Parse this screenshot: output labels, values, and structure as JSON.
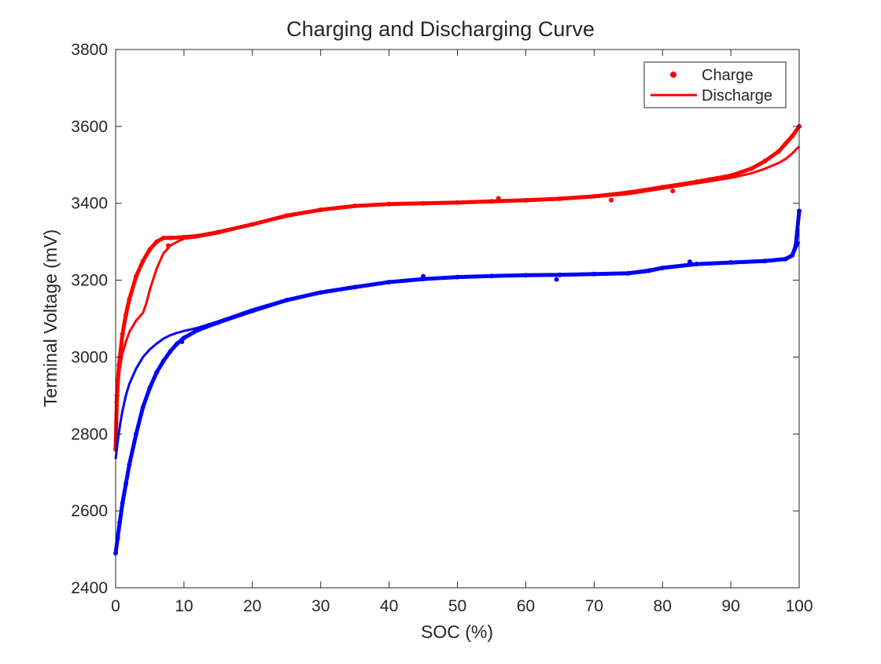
{
  "chart_data": {
    "type": "scatter",
    "title": "Charging and Discharging Curve",
    "xlabel": "SOC (%)",
    "ylabel": "Terminal Voltage (mV)",
    "xlim": [
      0,
      100
    ],
    "ylim": [
      2400,
      3800
    ],
    "xticks": [
      0,
      10,
      20,
      30,
      40,
      50,
      60,
      70,
      80,
      90,
      100
    ],
    "yticks": [
      2400,
      2600,
      2800,
      3000,
      3200,
      3400,
      3600,
      3800
    ],
    "grid": false,
    "legend_position": "top-right",
    "legend": [
      {
        "label": "Charge",
        "marker": "dot",
        "color": "#ff0000"
      },
      {
        "label": "Discharge",
        "marker": "line",
        "color": "#ff0000"
      }
    ],
    "series": [
      {
        "name": "Charge",
        "group": "red",
        "style": "markers",
        "color": "#ff0000",
        "x": [
          0,
          0.2,
          0.5,
          1,
          1.5,
          2,
          3,
          4,
          5,
          6,
          7,
          8,
          10,
          12,
          15,
          20,
          25,
          30,
          35,
          40,
          45,
          50,
          55,
          60,
          65,
          70,
          75,
          80,
          85,
          90,
          93,
          95,
          97,
          98,
          99,
          100
        ],
        "y": [
          2760,
          2900,
          2980,
          3060,
          3110,
          3150,
          3210,
          3250,
          3280,
          3300,
          3310,
          3310,
          3312,
          3315,
          3325,
          3345,
          3368,
          3383,
          3393,
          3398,
          3400,
          3402,
          3405,
          3408,
          3412,
          3418,
          3428,
          3442,
          3456,
          3472,
          3490,
          3510,
          3535,
          3555,
          3575,
          3600
        ]
      },
      {
        "name": "Discharge",
        "group": "red",
        "style": "line",
        "color": "#ff0000",
        "x": [
          0,
          0.3,
          0.7,
          1,
          1.5,
          2,
          3,
          4,
          4.5,
          5,
          6,
          7,
          8,
          9,
          10,
          12,
          15,
          20,
          25,
          30,
          35,
          40,
          45,
          50,
          55,
          60,
          65,
          70,
          75,
          80,
          85,
          90,
          93,
          95,
          97,
          98,
          99,
          100
        ],
        "y": [
          2880,
          2930,
          2980,
          3010,
          3040,
          3065,
          3095,
          3115,
          3140,
          3175,
          3230,
          3270,
          3290,
          3300,
          3308,
          3312,
          3322,
          3345,
          3365,
          3383,
          3392,
          3398,
          3400,
          3401,
          3403,
          3406,
          3410,
          3416,
          3424,
          3438,
          3452,
          3466,
          3478,
          3490,
          3505,
          3515,
          3530,
          3548
        ]
      },
      {
        "name": "",
        "group": "blue",
        "style": "markers",
        "color": "#0000ff",
        "x": [
          0,
          0.3,
          0.6,
          1,
          1.5,
          2,
          3,
          4,
          5,
          6,
          7,
          8,
          9,
          10,
          12,
          15,
          20,
          25,
          30,
          35,
          40,
          45,
          50,
          55,
          60,
          65,
          70,
          75,
          78,
          80,
          85,
          90,
          95,
          98,
          99,
          99.5,
          100
        ],
        "y": [
          2490,
          2530,
          2570,
          2620,
          2670,
          2720,
          2800,
          2870,
          2920,
          2960,
          2990,
          3015,
          3035,
          3050,
          3070,
          3090,
          3120,
          3148,
          3168,
          3182,
          3195,
          3203,
          3208,
          3211,
          3213,
          3214,
          3216,
          3218,
          3225,
          3232,
          3242,
          3246,
          3250,
          3255,
          3265,
          3290,
          3380
        ]
      },
      {
        "name": "",
        "group": "blue",
        "style": "line",
        "color": "#0000ff",
        "x": [
          0,
          0.3,
          0.7,
          1,
          1.5,
          2,
          3,
          4,
          5,
          6,
          7,
          8,
          9,
          10,
          12,
          15,
          20,
          25,
          30,
          35,
          40,
          45,
          50,
          55,
          60,
          65,
          70,
          75,
          78,
          80,
          85,
          90,
          95,
          98,
          99,
          100
        ],
        "y": [
          2735,
          2780,
          2830,
          2860,
          2900,
          2930,
          2970,
          3000,
          3020,
          3035,
          3048,
          3057,
          3063,
          3068,
          3076,
          3093,
          3124,
          3150,
          3170,
          3184,
          3195,
          3202,
          3207,
          3210,
          3212,
          3213,
          3215,
          3216,
          3222,
          3230,
          3240,
          3244,
          3248,
          3253,
          3262,
          3300
        ]
      }
    ],
    "outliers": [
      {
        "group": "red",
        "x": 7.7,
        "y": 3290
      },
      {
        "group": "red",
        "x": 72.5,
        "y": 3408
      },
      {
        "group": "red",
        "x": 81.5,
        "y": 3432
      },
      {
        "group": "red",
        "x": 56,
        "y": 3413
      },
      {
        "group": "blue",
        "x": 9.7,
        "y": 3040
      },
      {
        "group": "blue",
        "x": 64.5,
        "y": 3202
      },
      {
        "group": "blue",
        "x": 45,
        "y": 3210
      },
      {
        "group": "blue",
        "x": 84,
        "y": 3248
      }
    ]
  }
}
